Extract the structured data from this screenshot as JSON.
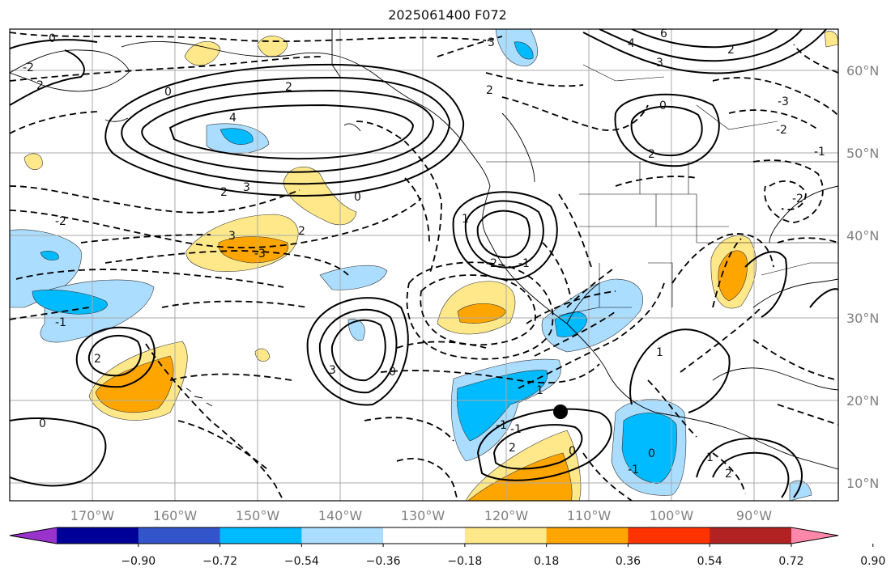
{
  "title": "2025061400 F072",
  "lon_ticks": [
    "170°W",
    "160°W",
    "150°W",
    "140°W",
    "130°W",
    "120°W",
    "110°W",
    "100°W",
    "90°W"
  ],
  "lat_ticks": [
    "60°N",
    "50°N",
    "40°N",
    "30°N",
    "20°N",
    "10°N"
  ],
  "colorbar": {
    "colors": [
      "#9933cc",
      "#000099",
      "#3355cc",
      "#00bbff",
      "#aaddff",
      "#ffffff",
      "#ffe88a",
      "#ffa500",
      "#ff3300",
      "#b22222",
      "#ff88aa"
    ],
    "labels": [
      "−0.90",
      "−0.72",
      "−0.54",
      "−0.36",
      "−0.18",
      "0.18",
      "0.36",
      "0.54",
      "0.72",
      "0.90"
    ]
  },
  "contour_labels": [
    "0",
    "3",
    "3",
    "4",
    "6",
    "2",
    "2",
    "4",
    "2",
    "2",
    "0",
    "-2",
    "2",
    "3",
    "0",
    "2",
    "-2",
    "3",
    "-3",
    "-1",
    "2",
    "-2",
    "3",
    "0",
    "-1",
    "0",
    "1",
    "-1",
    "1",
    "2",
    "2",
    "-1",
    "0",
    "-1",
    "-1",
    "0",
    "1",
    "1",
    "0",
    "-2",
    "2",
    "-3",
    "-2"
  ],
  "marker": "storm-position"
}
